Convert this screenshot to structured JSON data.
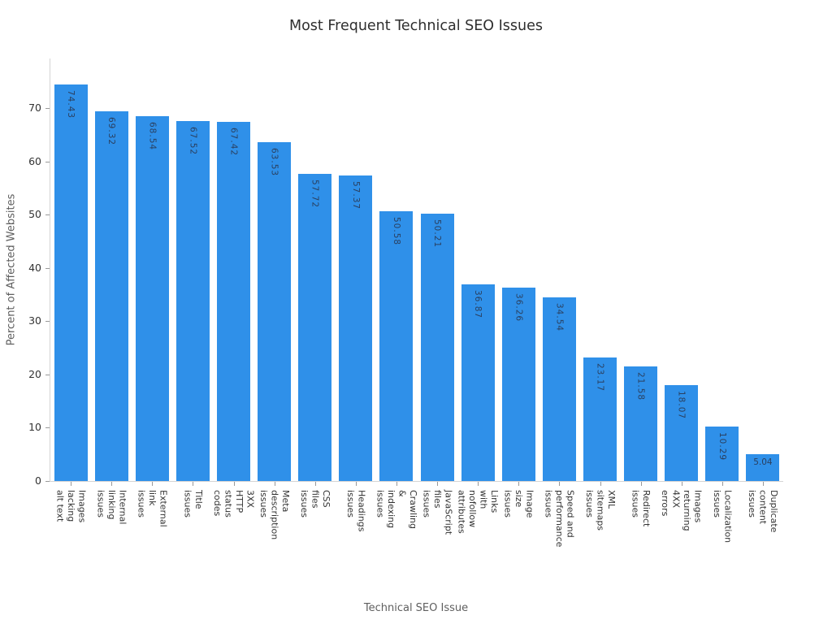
{
  "chart_data": {
    "type": "bar",
    "title": "Most Frequent Technical SEO Issues",
    "xlabel": "Technical SEO Issue",
    "ylabel": "Percent of Affected Websites",
    "ylim": [
      0,
      79.3
    ],
    "yticks": [
      0,
      10,
      20,
      30,
      40,
      50,
      60,
      70
    ],
    "grid": false,
    "legend": "none",
    "bar_color": "#2f90e9",
    "value_label_color": "#2a3f5f",
    "categories": [
      "Images lacking alt text",
      "Internal linking issues",
      "External link issues",
      "Title issues",
      "3XX HTTP status codes",
      "Meta description issues",
      "CSS files issues",
      "Headings issues",
      "Crawling & indexing issues",
      "JavaScript files issues",
      "Links with nofollow attributes",
      "Image size issues",
      "Speed and performance issues",
      "XML sitemaps issues",
      "Redirect issues",
      "Images returning 4XX errors",
      "Localization issues",
      "Duplicate content issues"
    ],
    "category_lines": [
      [
        "Images",
        "lacking alt text"
      ],
      [
        "Internal",
        "linking issues"
      ],
      [
        "External",
        "link issues"
      ],
      [
        "Title",
        "issues"
      ],
      [
        "3XX HTTP",
        "status codes"
      ],
      [
        "Meta",
        "description issues"
      ],
      [
        "CSS files",
        "issues"
      ],
      [
        "Headings",
        "issues"
      ],
      [
        "Crawling &",
        "indexing issues"
      ],
      [
        "JavaScript",
        "files issues"
      ],
      [
        "Links with",
        "nofollow attributes"
      ],
      [
        "Image size",
        "issues"
      ],
      [
        "Speed and",
        "performance issues"
      ],
      [
        "XML sitemaps",
        "issues"
      ],
      [
        "Redirect",
        "issues"
      ],
      [
        "Images",
        "returning 4XX errors"
      ],
      [
        "Localization",
        "issues"
      ],
      [
        "Duplicate",
        "content issues"
      ]
    ],
    "values": [
      74.43,
      69.32,
      68.54,
      67.52,
      67.42,
      63.53,
      57.72,
      57.37,
      50.58,
      50.21,
      36.87,
      36.26,
      34.54,
      23.17,
      21.58,
      18.07,
      10.29,
      5.04
    ]
  }
}
